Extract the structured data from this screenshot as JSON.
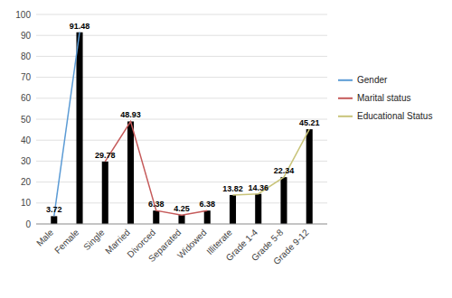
{
  "chart_data": {
    "type": "bar",
    "categories": [
      "Male",
      "Female",
      "Single",
      "Married",
      "Divorced",
      "Separated",
      "Widowed",
      "Illiterate",
      "Grade 1-4",
      "Grade 5-8",
      "Grade 9-12"
    ],
    "values": [
      3.72,
      91.48,
      29.78,
      48.93,
      6.38,
      4.25,
      6.38,
      13.82,
      14.36,
      22.34,
      45.21
    ],
    "color": "#000000",
    "series": [
      {
        "name": "Gender",
        "type": "line",
        "color": "#5b9bd5",
        "values": [
          3.72,
          91.48,
          null,
          null,
          null,
          null,
          null,
          null,
          null,
          null,
          null
        ]
      },
      {
        "name": "Marital status",
        "type": "line",
        "color": "#c55a5a",
        "values": [
          null,
          null,
          29.78,
          48.93,
          6.38,
          4.25,
          6.38,
          null,
          null,
          null,
          null
        ]
      },
      {
        "name": "Educational Status",
        "type": "line",
        "color": "#c9c47a",
        "values": [
          null,
          null,
          null,
          null,
          null,
          null,
          null,
          13.82,
          14.36,
          22.34,
          45.21
        ]
      }
    ],
    "ylim": [
      0,
      100
    ],
    "yticks": [
      0,
      10,
      20,
      30,
      40,
      50,
      60,
      70,
      80,
      90,
      100
    ],
    "grid": true,
    "data_labels": true,
    "legend": "right"
  }
}
